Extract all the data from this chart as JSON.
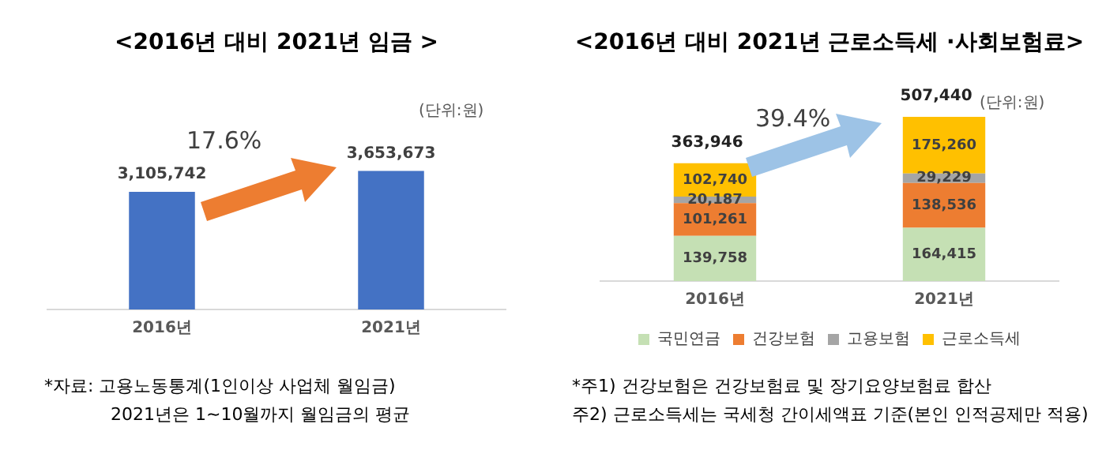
{
  "chart_data": [
    {
      "type": "bar",
      "title": "<2016년 대비 2021년 임금 >",
      "categories": [
        "2016년",
        "2021년"
      ],
      "values": [
        3105742,
        3653673
      ],
      "value_labels": [
        "3,105,742",
        "3,653,673"
      ],
      "color": "#4472c4",
      "grid": false,
      "legend": false,
      "tick_labels": "x",
      "annotations": [
        "(단위:원)",
        "17.6%",
        "*자료: 고용노동통계(1인이상 사업체 월임금)",
        "2021년은 1~10월까지 월임금의 평균"
      ]
    },
    {
      "type": "bar",
      "title": "<2016년 대비 2021년 근로소득세 ·사회보험료>",
      "categories": [
        "2016년",
        "2021년"
      ],
      "stacked": true,
      "grid": false,
      "legend": "bottom",
      "tick_labels": "x",
      "totals": [
        "363,946",
        "507,440"
      ],
      "series": [
        {
          "name": "국민연금",
          "color": "#c5e0b4",
          "values": [
            139758,
            164415
          ],
          "value_labels": [
            "139,758",
            "164,415"
          ]
        },
        {
          "name": "건강보험",
          "color": "#ed7d31",
          "values": [
            101261,
            138536
          ],
          "value_labels": [
            "101,261",
            "138,536"
          ]
        },
        {
          "name": "고용보험",
          "color": "#a5a5a5",
          "values": [
            20187,
            29229
          ],
          "value_labels": [
            "20,187",
            "29,229"
          ]
        },
        {
          "name": "근로소득세",
          "color": "#ffc000",
          "values": [
            102740,
            175260
          ],
          "value_labels": [
            "102,740",
            "175,260"
          ]
        }
      ],
      "annotations": [
        "(단위:원)",
        "39.4%",
        "*주1) 건강보험은 건강보험료 및 장기요양보험료 합산",
        "주2) 근로소득세는 국세청 간이세액표 기준(본인 인적공제만 적용)"
      ]
    }
  ]
}
